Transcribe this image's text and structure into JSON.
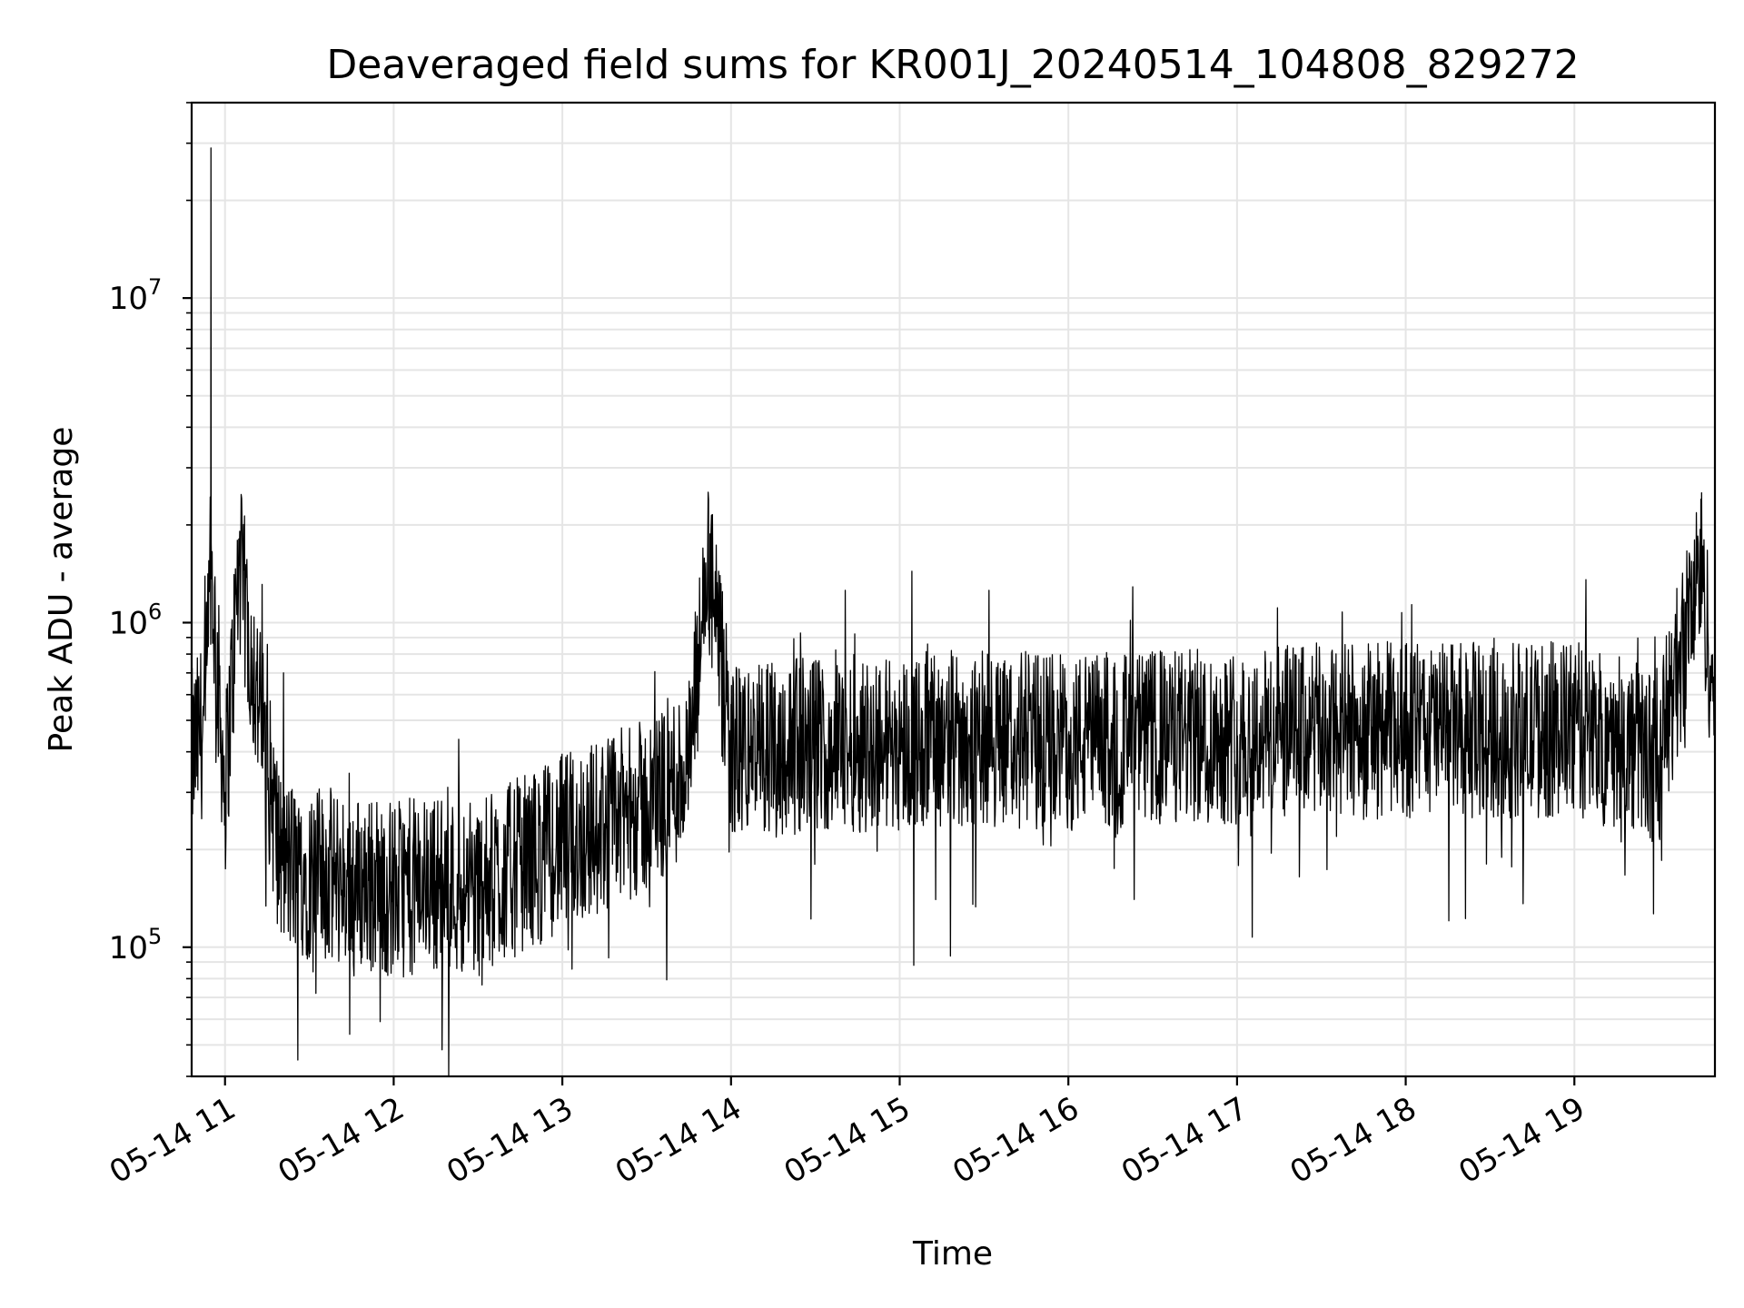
{
  "chart_data": {
    "type": "line",
    "title": "Deaveraged field sums for KR001J_20240514_104808_829272",
    "xlabel": "Time",
    "ylabel": "Peak ADU - average",
    "y_scale": "log",
    "ylim": [
      40000,
      40000000
    ],
    "xlim": [
      "2024-05-14 10:48:08",
      "2024-05-14 19:50:00"
    ],
    "x_tick_labels": [
      "05-14 11",
      "05-14 12",
      "05-14 13",
      "05-14 14",
      "05-14 15",
      "05-14 16",
      "05-14 17",
      "05-14 18",
      "05-14 19"
    ],
    "y_tick_labels": [
      {
        "value": 100000,
        "base": "10",
        "exp": "5"
      },
      {
        "value": 1000000,
        "base": "10",
        "exp": "6"
      },
      {
        "value": 10000000,
        "base": "10",
        "exp": "7"
      }
    ],
    "grid": true,
    "line_color": "#000000",
    "series": [
      {
        "x": [
          "2024-05-14 10:48",
          "2024-05-14 10:53",
          "2024-05-14 10:55",
          "2024-05-14 11:00",
          "2024-05-14 11:05",
          "2024-05-14 11:20",
          "2024-05-14 11:30",
          "2024-05-14 11:45",
          "2024-05-14 12:00",
          "2024-05-14 12:15",
          "2024-05-14 12:30",
          "2024-05-14 12:45",
          "2024-05-14 13:00",
          "2024-05-14 13:15",
          "2024-05-14 13:30",
          "2024-05-14 13:45",
          "2024-05-14 13:52",
          "2024-05-14 14:00",
          "2024-05-14 14:30",
          "2024-05-14 15:00",
          "2024-05-14 15:30",
          "2024-05-14 16:00",
          "2024-05-14 16:30",
          "2024-05-14 17:00",
          "2024-05-14 17:30",
          "2024-05-14 18:00",
          "2024-05-14 18:30",
          "2024-05-14 19:00",
          "2024-05-14 19:30",
          "2024-05-14 19:45",
          "2024-05-14 19:50"
        ],
        "values": [
          380000,
          500000,
          29000000,
          300000,
          1500000,
          180000,
          170000,
          160000,
          150000,
          160000,
          150000,
          180000,
          210000,
          240000,
          270000,
          360000,
          2400000,
          400000,
          420000,
          430000,
          440000,
          430000,
          440000,
          450000,
          460000,
          470000,
          460000,
          470000,
          390000,
          2400000,
          550000
        ]
      }
    ]
  }
}
